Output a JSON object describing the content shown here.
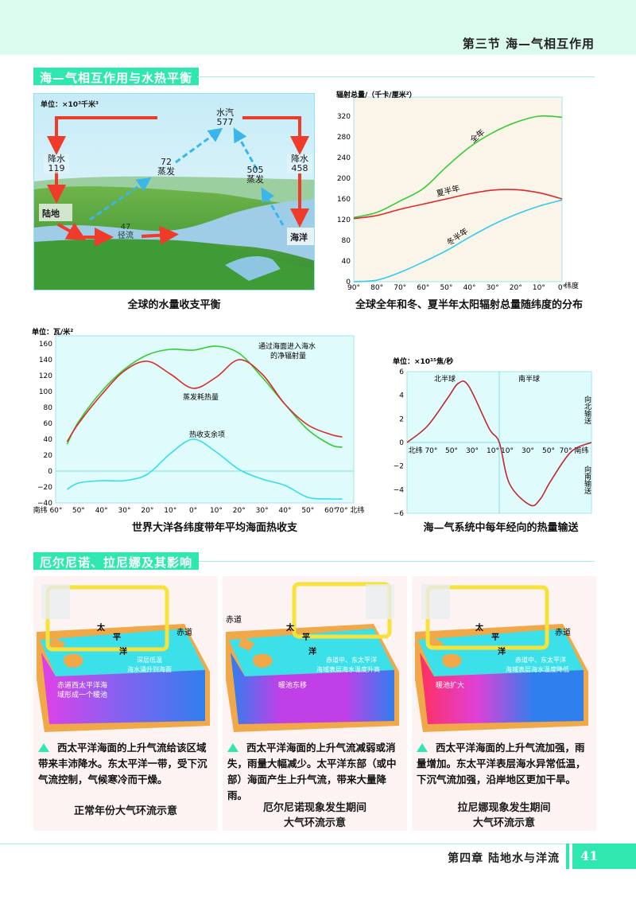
{
  "header": {
    "section_title": "第三节  海—气相互作用"
  },
  "section1": {
    "title": "海—气相互作用与水热平衡"
  },
  "water_cycle": {
    "unit": "单位：×10³千米³",
    "vapor_label": "水汽",
    "vapor_value": "577",
    "land_precip_label": "降水",
    "land_precip_value": "119",
    "ocean_precip_label": "降水",
    "ocean_precip_value": "458",
    "land_evap_value": "72",
    "land_evap_label": "蒸发",
    "ocean_evap_value": "505",
    "ocean_evap_label": "蒸发",
    "land_label": "陆地",
    "ocean_label": "海洋",
    "runoff_value": "47",
    "runoff_label": "径流",
    "caption": "全球的水量收支平衡"
  },
  "chart_data": [
    {
      "type": "line",
      "title": "全球全年和冬、夏半年太阳辐射总量随纬度的分布",
      "ylabel": "辐射总量/（千卡/厘米²）",
      "xlabel": "纬度",
      "x": [
        90,
        80,
        70,
        60,
        50,
        40,
        30,
        20,
        10,
        0
      ],
      "x_tick_labels": [
        "90°",
        "80°",
        "70°",
        "60°",
        "50°",
        "40°",
        "30°",
        "20°",
        "10°",
        "0°"
      ],
      "ylim": [
        0,
        320
      ],
      "y_ticks": [
        0,
        40,
        80,
        120,
        160,
        200,
        240,
        280,
        320
      ],
      "series": [
        {
          "name": "全年",
          "color": "#33cc33",
          "values": [
            124,
            134,
            156,
            180,
            222,
            260,
            288,
            308,
            320,
            318
          ]
        },
        {
          "name": "夏半年",
          "color": "#dd2a2a",
          "values": [
            122,
            128,
            140,
            150,
            160,
            170,
            177,
            178,
            172,
            160
          ]
        },
        {
          "name": "冬半年",
          "color": "#33ccee",
          "values": [
            0,
            3,
            18,
            38,
            60,
            86,
            110,
            130,
            146,
            158
          ]
        }
      ],
      "grid": false
    },
    {
      "type": "line",
      "title": "世界大洋各纬度带年平均海面热收支",
      "ylabel": "单位：瓦/米²",
      "x": [
        -55,
        -50,
        -40,
        -30,
        -20,
        -10,
        0,
        10,
        20,
        30,
        40,
        50,
        60,
        65
      ],
      "x_tick_labels": [
        "南纬 60°",
        "50°",
        "40°",
        "30°",
        "20°",
        "10°",
        "0°",
        "10°",
        "20°",
        "30°",
        "40°",
        "50°",
        "60°",
        "70° 北纬"
      ],
      "ylim": [
        -40,
        160
      ],
      "y_ticks": [
        -40,
        -20,
        0,
        20,
        40,
        60,
        80,
        100,
        120,
        140,
        160
      ],
      "series": [
        {
          "name": "通过海面进入海水的净辐射量",
          "color": "#33cc33",
          "values": [
            34,
            62,
            100,
            128,
            146,
            153,
            152,
            157,
            148,
            118,
            84,
            52,
            33,
            30
          ]
        },
        {
          "name": "蒸发耗热量",
          "color": "#dd2a2a",
          "values": [
            37,
            60,
            96,
            126,
            138,
            122,
            104,
            118,
            140,
            122,
            84,
            58,
            46,
            43
          ]
        },
        {
          "name": "热收支余项",
          "color": "#33ddee",
          "values": [
            -23,
            -15,
            -12,
            -12,
            -4,
            22,
            40,
            24,
            2,
            -10,
            -18,
            -33,
            -35,
            -35
          ]
        }
      ],
      "grid": false
    },
    {
      "type": "line",
      "title": "海—气系统中每年经向的热量输送",
      "ylabel": "单位：×10¹⁵焦/秒",
      "x_tick_labels": [
        "北纬 70°",
        "50°",
        "30°",
        "10°",
        "10°",
        "30°",
        "50°",
        "70° 南纬"
      ],
      "x": [
        90,
        70,
        50,
        40,
        30,
        10,
        0,
        -10,
        -30,
        -40,
        -50,
        -70,
        -90
      ],
      "ylim": [
        -6,
        6
      ],
      "y_ticks": [
        -6,
        -4,
        -2,
        0,
        2,
        4,
        6
      ],
      "series": [
        {
          "name": "热量输送",
          "color": "#c0282d",
          "values": [
            0,
            1.4,
            3.8,
            5.0,
            4.8,
            1.2,
            0,
            -3.5,
            -5.3,
            -4.8,
            -3.3,
            -0.8,
            0
          ]
        }
      ],
      "annotations": [
        "北半球",
        "南半球",
        "向北输送",
        "向南输送"
      ],
      "grid": false
    }
  ],
  "section2": {
    "title": "厄尔尼诺、拉尼娜及其影响"
  },
  "panels": [
    {
      "labels": {
        "tai": "太",
        "ping": "平",
        "yang": "洋",
        "equator": "赤道",
        "note1": "深层低温",
        "note2": "海水涌升到海面",
        "pool1": "赤道西太平洋海",
        "pool2": "域形成一个暖池"
      },
      "text": "西太平洋海面的上升气流给该区域带来丰沛降水。东太平洋一带，受下沉气流控制，气候寒冷而干燥。",
      "caption_line1": "正常年份大气环流示意",
      "caption_line2": ""
    },
    {
      "labels": {
        "tai": "太",
        "ping": "平",
        "yang": "洋",
        "equator": "赤道",
        "note1": "赤道中、东太平洋",
        "note2": "海域表层海水温度升高",
        "pool1": "暖池东移",
        "pool2": ""
      },
      "text": "西太平洋海面的上升气流减弱或消失，雨量大幅减少。太平洋东部（或中部）海面产生上升气流，带来大量降雨。",
      "caption_line1": "厄尔尼诺现象发生期间",
      "caption_line2": "大气环流示意"
    },
    {
      "labels": {
        "tai": "太",
        "ping": "平",
        "yang": "洋",
        "equator": "赤道",
        "note1": "赤道中、东太平洋",
        "note2": "海域表层海水温度降低",
        "pool1": "暖池扩大",
        "pool2": ""
      },
      "text": "西太平洋海面的上升气流加强，雨量增加。东太平洋表层海水异常低温，下沉气流加强，沿岸地区更加干旱。",
      "caption_line1": "拉尼娜现象发生期间",
      "caption_line2": "大气环流示意"
    }
  ],
  "footer": {
    "chapter": "第四章  陆地水与洋流",
    "page_number": "41"
  },
  "colors": {
    "accent": "#2ee8b0",
    "header_band": "#dcfbef",
    "chart_bg_beige": "#fbf4e8",
    "chart_bg_cyan": "#e0fbfb"
  }
}
